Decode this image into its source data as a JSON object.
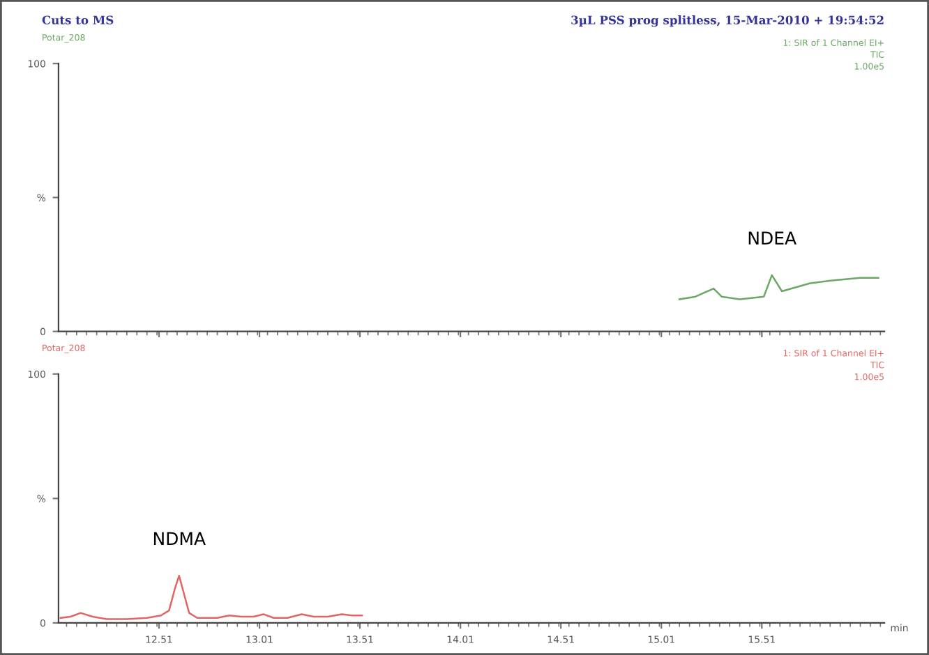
{
  "chart_data": [
    {
      "type": "line",
      "title": "Cuts to MS",
      "subtitle": "3µL PSS prog splitless, 15-Mar-2010 + 19:54:52",
      "annotations": [
        "Potar_208",
        "1: SIR of 1 Channel EI+",
        "TIC",
        "1.00e5",
        {
          "text": "NDEA",
          "x": 15.56,
          "y": 21
        }
      ],
      "series": [
        {
          "color": "#6aa864",
          "x": [
            15.1,
            15.18,
            15.27,
            15.31,
            15.4,
            15.52,
            15.56,
            15.61,
            15.75,
            15.86,
            16.0,
            16.09
          ],
          "values": [
            12,
            13,
            16,
            13,
            12,
            13,
            21,
            15,
            18,
            19,
            20,
            20
          ]
        }
      ],
      "xlim": [
        12.01,
        16.12
      ],
      "ylim": [
        0,
        100
      ],
      "yticks": [
        0,
        {
          "value": 50,
          "label": "%"
        },
        100
      ],
      "xticks": [
        {
          "value": 12.51,
          "label": null
        },
        {
          "value": 13.01,
          "label": null
        },
        {
          "value": 13.51,
          "label": null
        },
        {
          "value": 14.01,
          "label": null
        },
        {
          "value": 14.51,
          "label": null
        },
        {
          "value": 15.01,
          "label": null
        },
        {
          "value": 15.51,
          "label": null
        }
      ],
      "tick_labels": "y",
      "grid": false,
      "legend": false,
      "marker": "none",
      "line_style": "solid"
    },
    {
      "type": "line",
      "xlabel": "min",
      "annotations": [
        "Potar_208",
        "1: SIR of 1 Channel EI+",
        "TIC",
        "1.00e5",
        {
          "text": "NDMA",
          "x": 12.61,
          "y": 19
        }
      ],
      "series": [
        {
          "color": "#e06666",
          "x": [
            12.02,
            12.07,
            12.12,
            12.18,
            12.25,
            12.35,
            12.45,
            12.52,
            12.56,
            12.59,
            12.61,
            12.63,
            12.66,
            12.7,
            12.8,
            12.86,
            12.92,
            12.98,
            13.03,
            13.08,
            13.15,
            13.22,
            13.28,
            13.35,
            13.42,
            13.47,
            13.52
          ],
          "values": [
            2,
            2.5,
            4,
            2.5,
            1.5,
            1.5,
            2,
            3,
            5,
            14,
            19,
            13,
            4,
            2,
            2,
            3,
            2.5,
            2.5,
            3.5,
            2,
            2,
            3.5,
            2.5,
            2.5,
            3.5,
            3,
            3
          ]
        }
      ],
      "xlim": [
        12.01,
        16.12
      ],
      "ylim": [
        0,
        100
      ],
      "yticks": [
        0,
        {
          "value": 50,
          "label": "%"
        },
        100
      ],
      "xticks": [
        12.51,
        13.01,
        13.51,
        14.01,
        14.51,
        15.01,
        15.51
      ],
      "grid": false,
      "legend": false,
      "marker": "none",
      "line_style": "solid"
    }
  ]
}
